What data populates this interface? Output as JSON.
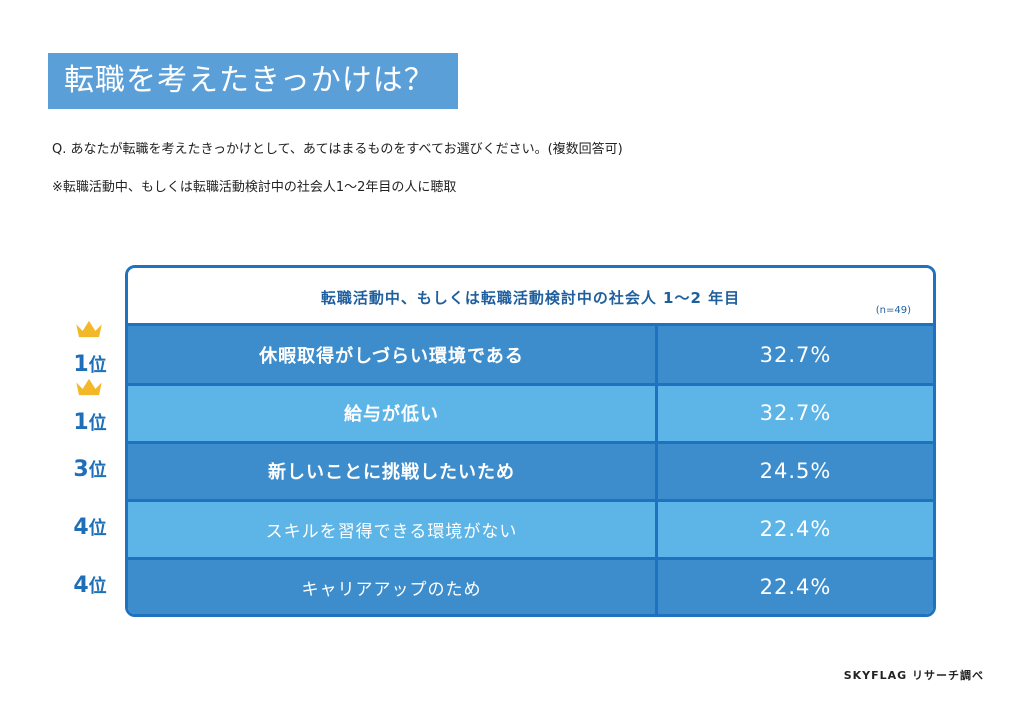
{
  "header": {
    "title": "転職を考えたきっかけは？",
    "question": "Q. あなたが転職を考えたきっかけとして、あてはまるものをすべてお選びください。(複数回答可)",
    "note": "※転職活動中、もしくは転職活動検討中の社会人1〜2年目の人に聴取"
  },
  "table": {
    "header_title": "転職活動中、もしくは転職活動検討中の社会人 1〜2 年目",
    "sample_size": "(n=49)"
  },
  "chart_data": {
    "type": "table",
    "title": "転職を考えたきっかけは？",
    "subtitle": "転職活動中、もしくは転職活動検討中の社会人 1〜2 年目",
    "n": "(n=49)",
    "rows": [
      {
        "rank": "1",
        "rank_suffix": "位",
        "crown": true,
        "label": "休暇取得がしづらい環境である",
        "value": 32.7,
        "value_text": "32.7%"
      },
      {
        "rank": "1",
        "rank_suffix": "位",
        "crown": true,
        "label": "給与が低い",
        "value": 32.7,
        "value_text": "32.7%"
      },
      {
        "rank": "3",
        "rank_suffix": "位",
        "crown": false,
        "label": "新しいことに挑戦したいため",
        "value": 24.5,
        "value_text": "24.5%"
      },
      {
        "rank": "4",
        "rank_suffix": "位",
        "crown": false,
        "label": "スキルを習得できる環境がない",
        "value": 22.4,
        "value_text": "22.4%"
      },
      {
        "rank": "4",
        "rank_suffix": "位",
        "crown": false,
        "label": "キャリアアップのため",
        "value": 22.4,
        "value_text": "22.4%"
      }
    ]
  },
  "footer": {
    "source": "SKYFLAG リサーチ調べ"
  },
  "colors": {
    "title_bg": "#5b9fd8",
    "row_dark": "#3d8dcc",
    "row_light": "#5db4e6",
    "border": "#1f72bf",
    "rank_text": "#1e6fb8",
    "crown": "#f3b82a"
  }
}
